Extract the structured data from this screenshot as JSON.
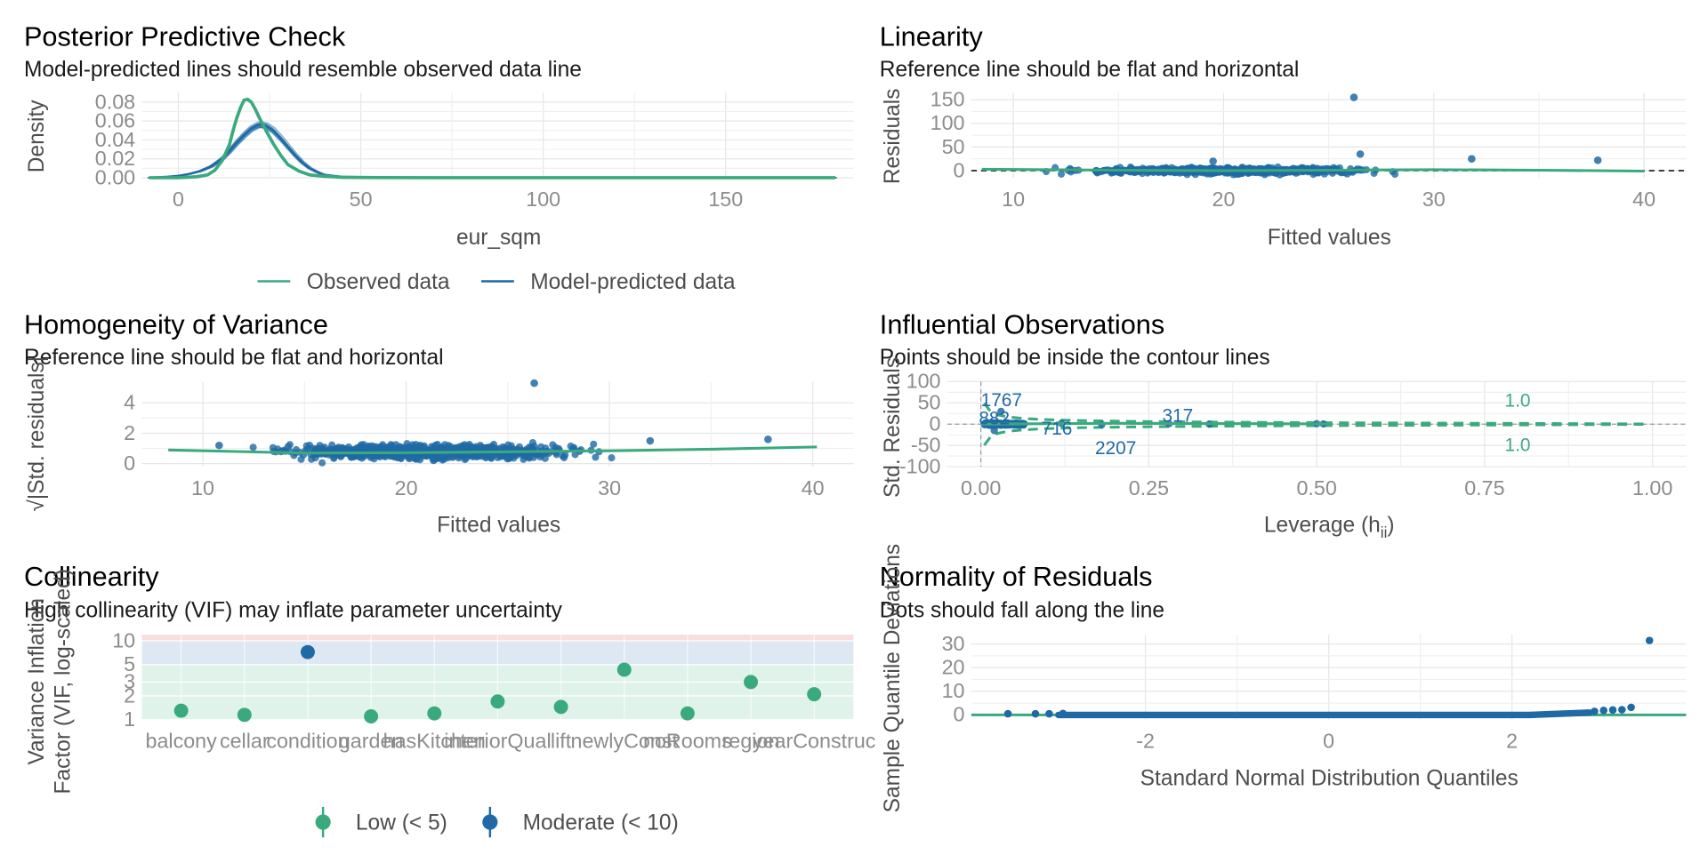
{
  "colors": {
    "green": "#3aaa7e",
    "blue": "#1f6aa5",
    "grid": "#e6e6e6",
    "band_low": "#dff3ea",
    "band_mod": "#dde8f3",
    "band_high": "#f8dede"
  },
  "chart_data": [
    {
      "id": "ppc",
      "type": "line",
      "title": "Posterior Predictive Check",
      "subtitle": "Model-predicted lines should resemble observed data line",
      "xlabel": "eur_sqm",
      "ylabel": "Density",
      "xlim": [
        -10,
        185
      ],
      "ylim": [
        0,
        0.09
      ],
      "xticks": [
        0,
        50,
        100,
        150
      ],
      "yticks": [
        0.0,
        0.02,
        0.04,
        0.06,
        0.08
      ],
      "ytick_labels": [
        "0.00",
        "0.02",
        "0.04",
        "0.06",
        "0.08"
      ],
      "legend": [
        "Observed data",
        "Model-predicted data"
      ],
      "series": [
        {
          "name": "Observed data",
          "x": [
            -8,
            0,
            5,
            8,
            10,
            12,
            14,
            15,
            16,
            17,
            18,
            19,
            20,
            21,
            22,
            24,
            26,
            28,
            30,
            33,
            36,
            40,
            45,
            55,
            70,
            100,
            150,
            180
          ],
          "y": [
            0,
            0,
            0.001,
            0.003,
            0.008,
            0.018,
            0.035,
            0.05,
            0.063,
            0.074,
            0.082,
            0.083,
            0.08,
            0.073,
            0.065,
            0.05,
            0.036,
            0.024,
            0.014,
            0.007,
            0.003,
            0.0015,
            0.0005,
            0.0001,
            0,
            0,
            0,
            0
          ]
        },
        {
          "name": "Model-predicted data",
          "x": [
            -8,
            -3,
            0,
            3,
            6,
            9,
            12,
            14,
            16,
            18,
            20,
            22,
            24,
            26,
            28,
            30,
            32,
            34,
            36,
            38,
            40,
            45,
            55,
            70,
            100,
            150,
            180
          ],
          "y": [
            0,
            0.001,
            0.002,
            0.004,
            0.007,
            0.012,
            0.02,
            0.028,
            0.037,
            0.045,
            0.052,
            0.056,
            0.055,
            0.05,
            0.042,
            0.033,
            0.024,
            0.016,
            0.01,
            0.006,
            0.003,
            0.001,
            0.0002,
            0,
            0,
            0,
            0
          ]
        }
      ]
    },
    {
      "id": "lin",
      "type": "scatter",
      "title": "Linearity",
      "subtitle": "Reference line should be flat and horizontal",
      "xlabel": "Fitted values",
      "ylabel": "Residuals",
      "xlim": [
        8,
        42
      ],
      "ylim": [
        -15,
        165
      ],
      "xticks": [
        10,
        20,
        30,
        40
      ],
      "yticks": [
        0,
        50,
        100,
        150
      ],
      "outliers": [
        [
          26.2,
          155
        ],
        [
          26.5,
          35
        ],
        [
          37.8,
          22
        ],
        [
          31.8,
          25
        ],
        [
          19.5,
          20
        ]
      ],
      "smooth": {
        "x": [
          8.5,
          15,
          20,
          25,
          30,
          35,
          40
        ],
        "y": [
          3,
          1,
          0,
          1,
          2,
          1,
          -1
        ]
      },
      "reference_line": 0
    },
    {
      "id": "hom",
      "type": "scatter",
      "title": "Homogeneity of Variance",
      "subtitle": "Reference line should be flat and horizontal",
      "xlabel": "Fitted values",
      "ylabel": "√|Std. residuals|",
      "xlim": [
        7,
        42
      ],
      "ylim": [
        -0.2,
        5.4
      ],
      "xticks": [
        10,
        20,
        30,
        40
      ],
      "yticks": [
        0,
        2,
        4
      ],
      "outliers": [
        [
          26.3,
          5.3
        ],
        [
          37.8,
          1.6
        ],
        [
          32,
          1.5
        ],
        [
          10.8,
          1.2
        ]
      ],
      "smooth": {
        "x": [
          8.3,
          15,
          20,
          25,
          30,
          35,
          40.2
        ],
        "y": [
          0.9,
          0.7,
          0.72,
          0.78,
          0.85,
          0.95,
          1.1
        ]
      }
    },
    {
      "id": "inf",
      "type": "scatter",
      "title": "Influential Observations",
      "subtitle": "Points should be inside the contour lines",
      "xlabel": "Leverage (h",
      "xlabel_sub": "ii",
      "xlabel_end": ")",
      "ylabel": "Std. Residuals",
      "xlim": [
        -0.05,
        1.05
      ],
      "ylim": [
        -100,
        100
      ],
      "xticks": [
        0,
        0.25,
        0.5,
        0.75,
        1.0
      ],
      "xtick_labels": [
        "0.00",
        "0.25",
        "0.50",
        "0.75",
        "1.00"
      ],
      "yticks": [
        -100,
        -50,
        0,
        50,
        100
      ],
      "labels": [
        {
          "text": "1767",
          "x": 0.0,
          "y": 55
        },
        {
          "text": "882",
          "x": -0.003,
          "y": 12
        },
        {
          "text": "716",
          "x": 0.09,
          "y": -12
        },
        {
          "text": "317",
          "x": 0.27,
          "y": 18
        },
        {
          "text": "2207",
          "x": 0.17,
          "y": -58
        }
      ],
      "contour_labels": [
        {
          "text": "1.0",
          "x": 0.78,
          "y": 54
        },
        {
          "text": "1.0",
          "x": 0.78,
          "y": -50
        }
      ]
    },
    {
      "id": "col",
      "type": "scatter",
      "title": "Collinearity",
      "subtitle": "High collinearity (VIF) may inflate parameter uncertainty",
      "ylabel_lines": [
        "Variance Inflation",
        "Factor (VIF, log-scaled)"
      ],
      "categories": [
        "balcony",
        "cellar",
        "condition",
        "garden",
        "hasKitchen",
        "interiorQual",
        "lift",
        "newlyConst",
        "noRooms",
        "region",
        "yearConstruc"
      ],
      "vif": [
        1.3,
        1.15,
        7.2,
        1.1,
        1.2,
        1.7,
        1.45,
        4.3,
        1.2,
        3.0,
        2.1
      ],
      "level": [
        "low",
        "low",
        "moderate",
        "low",
        "low",
        "low",
        "low",
        "low",
        "low",
        "low",
        "low"
      ],
      "yticks": [
        1,
        2,
        3,
        5,
        10
      ],
      "ylim": [
        1,
        12
      ],
      "legend": [
        "Low (< 5)",
        "Moderate (< 10)"
      ]
    },
    {
      "id": "qq",
      "type": "scatter",
      "title": "Normality of Residuals",
      "subtitle": "Dots should fall along the line",
      "xlabel": "Standard Normal Distribution Quantiles",
      "ylabel": "Sample Quantile Deviations",
      "xlim": [
        -3.9,
        3.9
      ],
      "ylim": [
        -2,
        34
      ],
      "xticks": [
        -2,
        0,
        2
      ],
      "yticks": [
        0,
        10,
        20,
        30
      ],
      "points": [
        [
          -3.5,
          0.5
        ],
        [
          -3.2,
          0.5
        ],
        [
          -3.05,
          0.5
        ],
        [
          -2.9,
          0.6
        ],
        [
          2.9,
          1.5
        ],
        [
          3.0,
          1.9
        ],
        [
          3.1,
          2.1
        ],
        [
          3.2,
          2.2
        ],
        [
          3.3,
          3.2
        ],
        [
          3.5,
          31.5
        ]
      ]
    }
  ]
}
